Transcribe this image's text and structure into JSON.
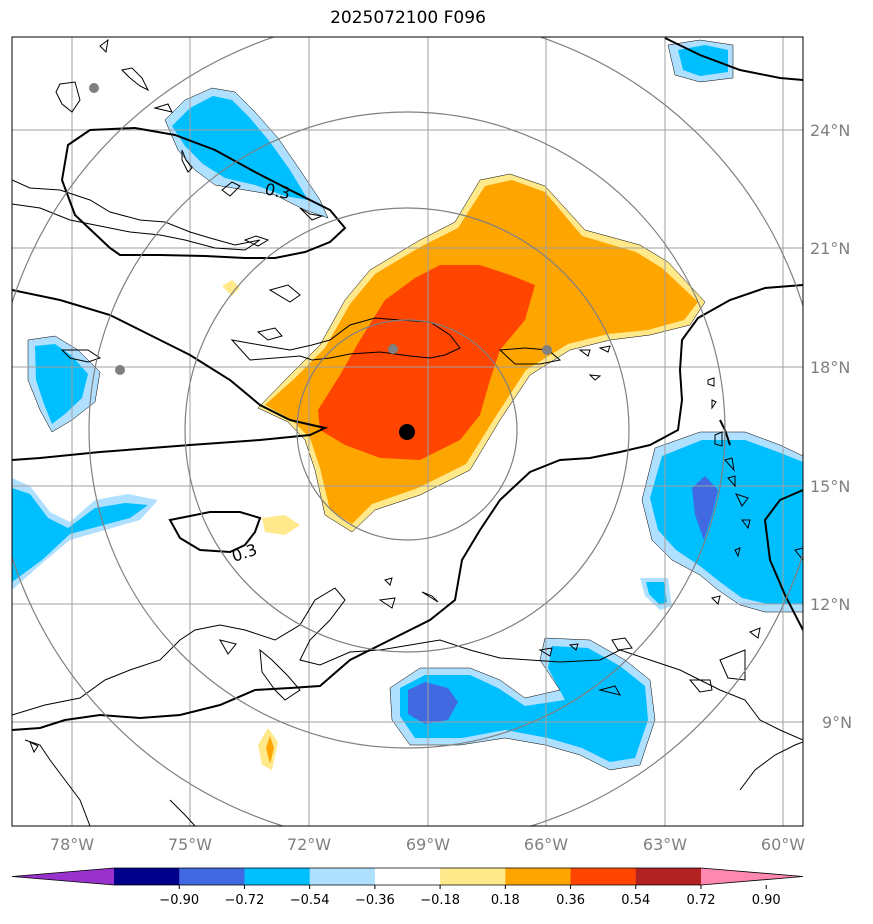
{
  "title": "2025072100 F096",
  "latitude_labels": [
    "24°N",
    "21°N",
    "18°N",
    "15°N",
    "12°N",
    "9°N"
  ],
  "longitude_labels": [
    "78°W",
    "75°W",
    "72°W",
    "69°W",
    "66°W",
    "63°W",
    "60°W"
  ],
  "contour_labels": [
    "0.3",
    "0.3"
  ],
  "colorbar": {
    "ticks": [
      "−0.90",
      "−0.72",
      "−0.54",
      "−0.36",
      "−0.18",
      "0.18",
      "0.36",
      "0.54",
      "0.72",
      "0.90"
    ],
    "colors": [
      "#9932cc",
      "#00008b",
      "#4169e1",
      "#00bfff",
      "#b0e0ff",
      "#ffffff",
      "#ffe98a",
      "#ffa500",
      "#ff4500",
      "#b22222",
      "#ff88b0"
    ]
  },
  "colors": {
    "coast": "#000000",
    "grid": "#a0a0a0",
    "range_rings": "#808080",
    "center_marker": "#000000",
    "city_marker": "#808080"
  }
}
